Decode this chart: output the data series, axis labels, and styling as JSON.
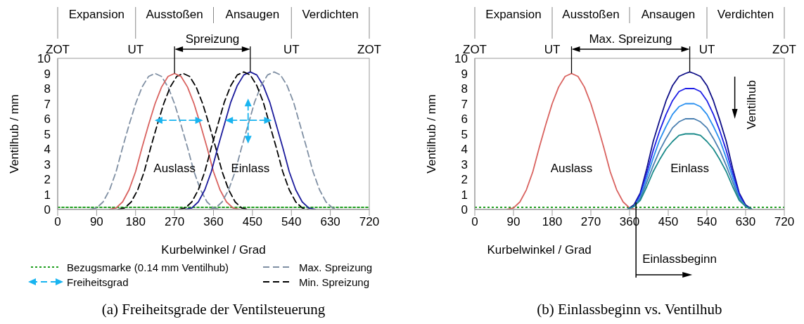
{
  "chart_data": [
    {
      "type": "line",
      "title": "(a) Freiheitsgrade der Ventilsteuerung",
      "xlabel": "Kurbelwinkel / Grad",
      "ylabel": "Ventilhub / mm",
      "xlim": [
        0,
        720
      ],
      "xticks": [
        0,
        90,
        180,
        270,
        360,
        450,
        540,
        630,
        720
      ],
      "ylim": [
        0,
        10
      ],
      "yticks": [
        0,
        1,
        2,
        3,
        4,
        5,
        6,
        7,
        8,
        9,
        10
      ],
      "legend": "bottom",
      "annotations": [
        "Expansion",
        "Ausstoßen",
        "Ansaugen",
        "Verdichten",
        "ZOT",
        "UT",
        "UT",
        "ZOT",
        "Auslass",
        "Einlass",
        {
          "text": "Spreizung",
          "x": 270,
          "y": 9.0
        }
      ],
      "series": [
        {
          "name": "Bezugsmarke (0.14 mm Ventilhub)",
          "color": "#1e9e1e",
          "line_style": "dotted",
          "x": [
            0,
            720
          ],
          "values": [
            0.14,
            0.14
          ]
        },
        {
          "name": "Max. Spreizung",
          "color": "#7f8fa3",
          "line_style": "dashed",
          "x": [
            75,
            90,
            105,
            120,
            135,
            150,
            165,
            180,
            195,
            210,
            225,
            240,
            255,
            270,
            285,
            300,
            315,
            330,
            345,
            360,
            375
          ],
          "values": [
            0,
            0.1,
            0.5,
            1.3,
            2.5,
            4.1,
            5.6,
            7.0,
            8.1,
            8.8,
            9.0,
            8.8,
            8.1,
            7.0,
            5.6,
            4.1,
            2.5,
            1.3,
            0.5,
            0.1,
            0
          ]
        },
        {
          "name": "Freiheitsgrad",
          "color": "#18b4f0",
          "line_style": "dashed",
          "marker": "triangle",
          "x": [
            236,
            324
          ],
          "values": [
            5.9,
            5.9
          ]
        },
        {
          "name": "Min. Spreizung",
          "color": "#000000",
          "line_style": "dashed",
          "x": [
            140,
            155,
            170,
            185,
            200,
            215,
            230,
            245,
            260,
            275,
            290,
            305,
            320,
            335,
            350,
            365,
            380,
            395,
            410,
            425,
            440
          ],
          "values": [
            0,
            0.1,
            0.5,
            1.3,
            2.5,
            4.1,
            5.6,
            7.0,
            8.1,
            8.8,
            9.0,
            8.8,
            8.1,
            7.0,
            5.6,
            4.1,
            2.5,
            1.3,
            0.5,
            0.1,
            0
          ]
        },
        {
          "color": "#d9625f",
          "line_style": "solid",
          "x": [
            120,
            135,
            150,
            165,
            180,
            195,
            210,
            225,
            240,
            255,
            270,
            285,
            300,
            315,
            330,
            345,
            360,
            375,
            390,
            405,
            420
          ],
          "values": [
            0,
            0.1,
            0.5,
            1.3,
            2.5,
            4.1,
            5.6,
            7.0,
            8.1,
            8.8,
            9.0,
            8.8,
            8.1,
            7.0,
            5.6,
            4.1,
            2.5,
            1.3,
            0.5,
            0.1,
            0
          ]
        },
        {
          "color": "#1c1c9c",
          "line_style": "solid",
          "x": [
            295,
            310,
            325,
            340,
            355,
            370,
            385,
            400,
            415,
            430,
            445,
            460,
            475,
            490,
            505,
            520,
            535,
            550,
            565,
            580,
            595
          ],
          "values": [
            0,
            0.1,
            0.5,
            1.3,
            2.5,
            4.1,
            5.6,
            7.1,
            8.2,
            8.9,
            9.1,
            8.9,
            8.2,
            7.1,
            5.6,
            4.1,
            2.5,
            1.3,
            0.5,
            0.1,
            0
          ]
        },
        {
          "color": "#7f8fa3",
          "line_style": "dashed",
          "x": [
            350,
            365,
            380,
            395,
            410,
            425,
            440,
            455,
            470,
            485,
            500,
            515,
            530,
            545,
            560,
            575,
            590,
            605,
            620,
            635,
            650
          ],
          "values": [
            0,
            0.1,
            0.5,
            1.3,
            2.5,
            4.1,
            5.6,
            7.1,
            8.2,
            8.9,
            9.1,
            8.9,
            8.2,
            7.1,
            5.6,
            4.1,
            2.5,
            1.3,
            0.5,
            0.1,
            0
          ]
        },
        {
          "color": "#000000",
          "line_style": "dashed",
          "x": [
            280,
            295,
            310,
            325,
            340,
            355,
            370,
            385,
            400,
            415,
            430,
            445,
            460,
            475,
            490,
            505,
            520,
            535,
            550,
            565,
            580
          ],
          "values": [
            0,
            0.1,
            0.5,
            1.3,
            2.5,
            4.1,
            5.6,
            7.1,
            8.2,
            8.9,
            9.1,
            8.9,
            8.2,
            7.1,
            5.6,
            4.1,
            2.5,
            1.3,
            0.5,
            0.1,
            0
          ]
        },
        {
          "color": "#18b4f0",
          "line_style": "dashed",
          "marker": "triangle",
          "x": [
            399,
            483
          ],
          "values": [
            5.9,
            5.9
          ]
        },
        {
          "color": "#18b4f0",
          "line_style": "dashed",
          "marker": "triangle",
          "x": [
            440,
            440
          ],
          "values": [
            7.0,
            4.7
          ]
        }
      ]
    },
    {
      "type": "line",
      "title": "(b) Einlassbeginn vs. Ventilhub",
      "xlabel": "Kurbelwinkel / Grad",
      "ylabel": "Ventilhub / mm",
      "xlim": [
        0,
        720
      ],
      "xticks": [
        0,
        90,
        180,
        270,
        360,
        450,
        540,
        630,
        720
      ],
      "ylim": [
        0,
        10
      ],
      "yticks": [
        0,
        1,
        2,
        3,
        4,
        5,
        6,
        7,
        8,
        9,
        10
      ],
      "ref_lines": [
        {
          "axis": "y",
          "value": 0.14,
          "color": "#1e9e1e",
          "line_style": "dotted"
        },
        {
          "axis": "x",
          "value": 375,
          "label": "Einlassbeginn",
          "color": "#000000",
          "line_style": "solid"
        }
      ],
      "annotations": [
        "Expansion",
        "Ausstoßen",
        "Ansaugen",
        "Verdichten",
        "ZOT",
        "UT",
        "UT",
        "ZOT",
        "Auslass",
        "Einlass",
        "Ventilhub",
        {
          "text": "Max. Spreizung",
          "x": 225,
          "y": 9.0
        }
      ],
      "series": [
        {
          "color": "#d9625f",
          "line_style": "solid",
          "x": [
            75,
            90,
            105,
            120,
            135,
            150,
            165,
            180,
            195,
            210,
            225,
            240,
            255,
            270,
            285,
            300,
            315,
            330,
            345,
            360,
            375
          ],
          "values": [
            0,
            0.1,
            0.5,
            1.3,
            2.5,
            4.1,
            5.6,
            7.0,
            8.1,
            8.8,
            9.0,
            8.8,
            8.1,
            7.0,
            5.6,
            4.1,
            2.5,
            1.3,
            0.5,
            0.1,
            0
          ]
        },
        {
          "color": "#101088",
          "line_style": "solid",
          "x": [
            355,
            370,
            385,
            400,
            415,
            430,
            445,
            460,
            475,
            490,
            500,
            510,
            525,
            540,
            555,
            570,
            585,
            600,
            615,
            630,
            645
          ],
          "values": [
            0,
            0.3,
            1.1,
            2.7,
            4.5,
            5.9,
            7.2,
            8.2,
            8.8,
            9.0,
            9.1,
            9.0,
            8.8,
            8.2,
            7.2,
            5.9,
            4.5,
            2.7,
            1.1,
            0.3,
            0
          ]
        },
        {
          "color": "#1e1ee6",
          "line_style": "solid",
          "x": [
            355,
            370,
            385,
            400,
            415,
            430,
            445,
            460,
            475,
            490,
            500,
            510,
            525,
            540,
            555,
            570,
            585,
            600,
            615,
            630,
            645
          ],
          "values": [
            0,
            0.2,
            1.0,
            2.4,
            3.9,
            5.2,
            6.3,
            7.2,
            7.8,
            8.0,
            8.0,
            8.0,
            7.8,
            7.2,
            6.3,
            5.2,
            3.9,
            2.4,
            1.0,
            0.2,
            0
          ]
        },
        {
          "color": "#2a90f0",
          "line_style": "solid",
          "x": [
            355,
            370,
            385,
            400,
            415,
            430,
            445,
            460,
            475,
            490,
            500,
            510,
            525,
            540,
            555,
            570,
            585,
            600,
            615,
            630,
            645
          ],
          "values": [
            0,
            0.2,
            0.8,
            2.1,
            3.4,
            4.6,
            5.5,
            6.3,
            6.8,
            7.0,
            7.0,
            7.0,
            6.8,
            6.3,
            5.5,
            4.6,
            3.4,
            2.1,
            0.8,
            0.2,
            0
          ]
        },
        {
          "color": "#4a7fb0",
          "line_style": "solid",
          "x": [
            355,
            370,
            385,
            400,
            415,
            430,
            445,
            460,
            475,
            490,
            500,
            510,
            525,
            540,
            555,
            570,
            585,
            600,
            615,
            630,
            645
          ],
          "values": [
            0,
            0.2,
            0.7,
            1.8,
            2.9,
            3.9,
            4.7,
            5.4,
            5.8,
            6.0,
            6.0,
            6.0,
            5.8,
            5.4,
            4.7,
            3.9,
            2.9,
            1.8,
            0.7,
            0.2,
            0
          ]
        },
        {
          "color": "#1a8a8a",
          "line_style": "solid",
          "x": [
            355,
            370,
            385,
            400,
            415,
            430,
            445,
            460,
            475,
            490,
            500,
            510,
            525,
            540,
            555,
            570,
            585,
            600,
            615,
            630,
            645
          ],
          "values": [
            0,
            0.2,
            0.6,
            1.5,
            2.5,
            3.3,
            4.0,
            4.5,
            4.9,
            5.0,
            5.0,
            5.0,
            4.9,
            4.5,
            4.0,
            3.3,
            2.5,
            1.5,
            0.6,
            0.2,
            0
          ]
        }
      ]
    }
  ]
}
